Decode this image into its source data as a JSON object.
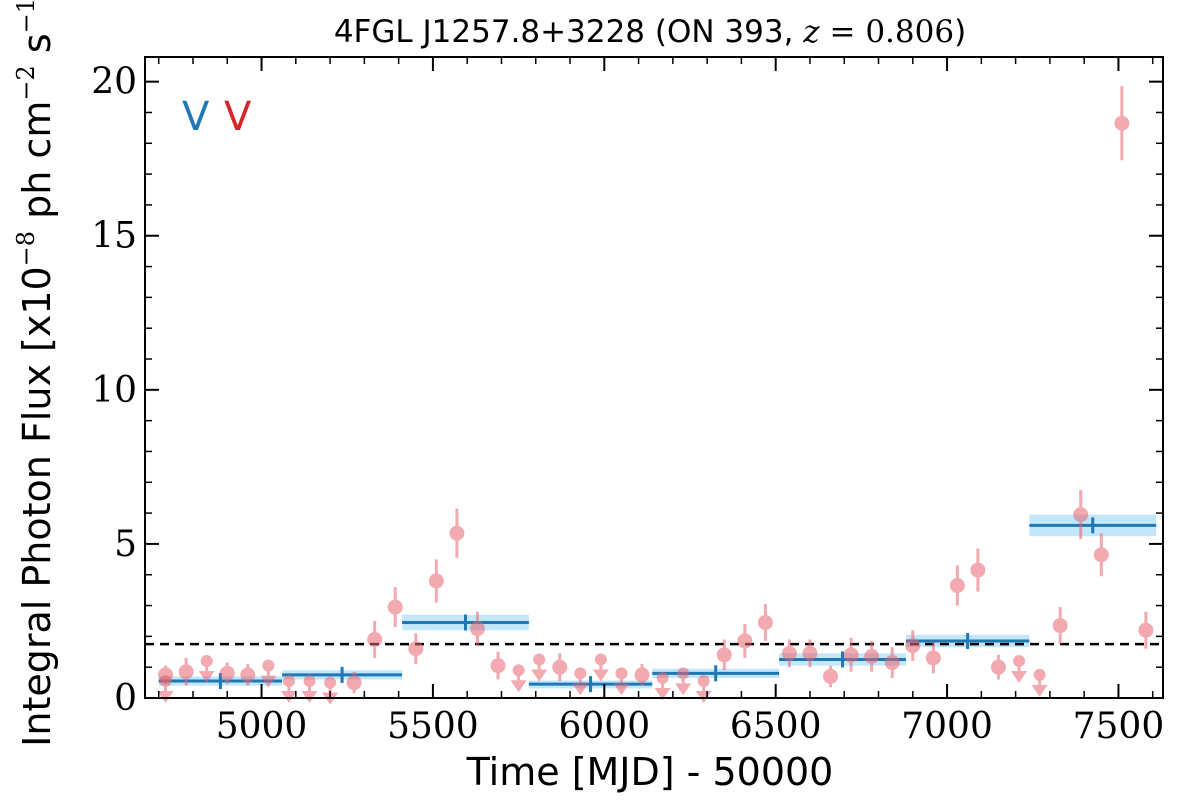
{
  "chart_data": {
    "type": "scatter",
    "title": "4FGL J1257.8+3228 (ON 393, z = 0.806)",
    "title_parts": {
      "prefix": "4FGL J1257.8+3228 (ON 393, ",
      "zvar": "z",
      "eq": " = ",
      "zval": "0.806",
      "suffix": ")"
    },
    "xlabel": "Time [MJD] - 50000",
    "ylabel": "Integral Photon Flux [x10⁻⁸ ph cm⁻² s⁻¹]",
    "ylabel_parts": {
      "prefix": "Integral Photon Flux [x10",
      "exp1": "−8",
      "mid1": " ph cm",
      "exp2": "−2",
      "mid2": " s",
      "exp3": "−1",
      "suffix": "]"
    },
    "xlim": [
      4660,
      7630
    ],
    "ylim": [
      0,
      20.8
    ],
    "x_ticks": [
      5000,
      5500,
      6000,
      6500,
      7000,
      7500
    ],
    "x_tick_labels": [
      "5000",
      "5500",
      "6000",
      "6500",
      "7000",
      "7500"
    ],
    "y_ticks": [
      0,
      5,
      10,
      15,
      20
    ],
    "y_tick_labels": [
      "0",
      "5",
      "10",
      "15",
      "20"
    ],
    "markers": [
      {
        "label": "V",
        "color": "#1f77b4"
      },
      {
        "label": "V",
        "color": "#d62728"
      }
    ],
    "mean_flux": 1.75,
    "colors": {
      "points": "#e8646e",
      "bayesian_blocks": "#1f77b4",
      "block_band": "#8fd3f5",
      "mean_line": "#000000"
    },
    "detections": [
      {
        "x": 4720,
        "y": 0.75,
        "err": 0.3
      },
      {
        "x": 4780,
        "y": 0.85,
        "err": 0.45
      },
      {
        "x": 4900,
        "y": 0.8,
        "err": 0.35
      },
      {
        "x": 4960,
        "y": 0.75,
        "err": 0.35
      },
      {
        "x": 5270,
        "y": 0.5,
        "err": 0.35
      },
      {
        "x": 5330,
        "y": 1.9,
        "err": 0.6
      },
      {
        "x": 5390,
        "y": 2.95,
        "err": 0.65
      },
      {
        "x": 5450,
        "y": 1.6,
        "err": 0.5
      },
      {
        "x": 5510,
        "y": 3.8,
        "err": 0.7
      },
      {
        "x": 5570,
        "y": 5.35,
        "err": 0.8
      },
      {
        "x": 5630,
        "y": 2.25,
        "err": 0.55
      },
      {
        "x": 5690,
        "y": 1.05,
        "err": 0.45
      },
      {
        "x": 5870,
        "y": 1.0,
        "err": 0.45
      },
      {
        "x": 6110,
        "y": 0.75,
        "err": 0.35
      },
      {
        "x": 6350,
        "y": 1.4,
        "err": 0.5
      },
      {
        "x": 6410,
        "y": 1.85,
        "err": 0.55
      },
      {
        "x": 6470,
        "y": 2.45,
        "err": 0.6
      },
      {
        "x": 6540,
        "y": 1.45,
        "err": 0.45
      },
      {
        "x": 6600,
        "y": 1.45,
        "err": 0.45
      },
      {
        "x": 6660,
        "y": 0.7,
        "err": 0.35
      },
      {
        "x": 6720,
        "y": 1.4,
        "err": 0.55
      },
      {
        "x": 6780,
        "y": 1.35,
        "err": 0.5
      },
      {
        "x": 6840,
        "y": 1.15,
        "err": 0.5
      },
      {
        "x": 6900,
        "y": 1.7,
        "err": 0.5
      },
      {
        "x": 6960,
        "y": 1.3,
        "err": 0.5
      },
      {
        "x": 7030,
        "y": 3.65,
        "err": 0.65
      },
      {
        "x": 7090,
        "y": 4.15,
        "err": 0.7
      },
      {
        "x": 7150,
        "y": 1.0,
        "err": 0.4
      },
      {
        "x": 7330,
        "y": 2.35,
        "err": 0.6
      },
      {
        "x": 7390,
        "y": 5.95,
        "err": 0.8
      },
      {
        "x": 7450,
        "y": 4.65,
        "err": 0.7
      },
      {
        "x": 7510,
        "y": 18.65,
        "err": 1.2
      },
      {
        "x": 7580,
        "y": 2.2,
        "err": 0.6
      }
    ],
    "upper_limits": [
      {
        "x": 4720,
        "y": 0.55
      },
      {
        "x": 4840,
        "y": 1.2
      },
      {
        "x": 5020,
        "y": 1.05
      },
      {
        "x": 5080,
        "y": 0.55
      },
      {
        "x": 5140,
        "y": 0.55
      },
      {
        "x": 5200,
        "y": 0.5
      },
      {
        "x": 5750,
        "y": 0.9
      },
      {
        "x": 5810,
        "y": 1.25
      },
      {
        "x": 5930,
        "y": 0.8
      },
      {
        "x": 5990,
        "y": 1.25
      },
      {
        "x": 6050,
        "y": 0.8
      },
      {
        "x": 6170,
        "y": 0.65
      },
      {
        "x": 6230,
        "y": 0.8
      },
      {
        "x": 6290,
        "y": 0.55
      },
      {
        "x": 7210,
        "y": 1.2
      },
      {
        "x": 7270,
        "y": 0.75
      }
    ],
    "bayesian_blocks": [
      {
        "x0": 4700,
        "x1": 5060,
        "y": 0.55,
        "err": 0.15,
        "xmid": 4880
      },
      {
        "x0": 5060,
        "x1": 5410,
        "y": 0.75,
        "err": 0.15,
        "xmid": 5235
      },
      {
        "x0": 5410,
        "x1": 5780,
        "y": 2.45,
        "err": 0.25,
        "xmid": 5595
      },
      {
        "x0": 5780,
        "x1": 6140,
        "y": 0.45,
        "err": 0.12,
        "xmid": 5960
      },
      {
        "x0": 6140,
        "x1": 6510,
        "y": 0.8,
        "err": 0.15,
        "xmid": 6325
      },
      {
        "x0": 6510,
        "x1": 6880,
        "y": 1.25,
        "err": 0.2,
        "xmid": 6695
      },
      {
        "x0": 6880,
        "x1": 7240,
        "y": 1.85,
        "err": 0.2,
        "xmid": 7060
      },
      {
        "x0": 7240,
        "x1": 7610,
        "y": 5.6,
        "err": 0.35,
        "xmid": 7425
      }
    ]
  }
}
